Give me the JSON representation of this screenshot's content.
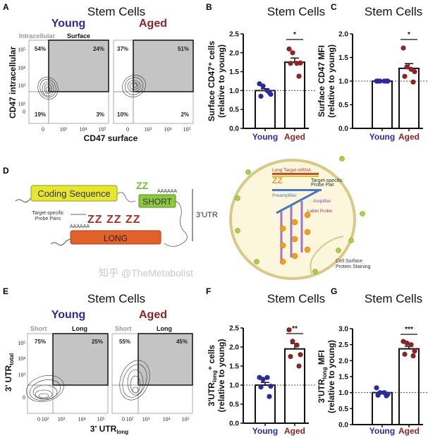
{
  "colors": {
    "young": "#2b2b9c",
    "aged": "#8b2424",
    "gate_fill": "#c4c4c4",
    "intracellular_label": "#9a9a9a"
  },
  "panel_a": {
    "label": "A",
    "title": "Stem Cells",
    "young": "Young",
    "aged": "Aged",
    "gate_left": "Intracellular",
    "gate_right": "Surface",
    "ylabel": "CD47 intracellular",
    "xlabel": "CD47 surface",
    "yticks": [
      "10⁵",
      "10⁴",
      "10³",
      "10²",
      "0"
    ],
    "xticks": [
      "0",
      "10³",
      "10⁴",
      "10⁵"
    ],
    "young_quadrants": {
      "ul": "54%",
      "ur": "24%",
      "ll": "19%",
      "lr": "3%"
    },
    "aged_quadrants": {
      "ul": "37%",
      "ur": "51%",
      "ll": "10%",
      "lr": "2%"
    }
  },
  "panel_d": {
    "label": "D",
    "coding": "Coding Sequence",
    "short": "SHORT",
    "long": "LONG",
    "probe_pairs": "Target-specific Probe Pairs",
    "utr": "3'UTR",
    "polya": "AAAAAA",
    "long_target": "Long Target mRNA",
    "target_probe_pair": "Target-specific Probe Pair",
    "preamplifier": "Preamplifier",
    "amplifier": "Amplifier",
    "label_probe": "Label Probe",
    "surface_staining": "Cell Surface Protein Staining"
  },
  "panel_e": {
    "label": "E",
    "title": "Stem Cells",
    "young": "Young",
    "aged": "Aged",
    "gate_left": "Short",
    "gate_right": "Long",
    "ylabel": "3' UTR",
    "ylabel_sub": "total",
    "xlabel": "3' UTR",
    "xlabel_sub": "long",
    "yticks": [
      "10⁵",
      "10⁴",
      "10³",
      "0"
    ],
    "xticks": [
      "0",
      "10²",
      "10³",
      "10⁴",
      "10⁵"
    ],
    "young_gates": {
      "left": "75%",
      "right": "25%"
    },
    "aged_gates": {
      "left": "55%",
      "right": "45%"
    }
  },
  "watermark": "知乎 @TheMetabolist",
  "chart_data": [
    {
      "id": "B",
      "type": "bar",
      "label": "B",
      "title": "Stem Cells",
      "ylabel": "Surface CD47⁺ cells",
      "ylabel2": "(relative to young)",
      "categories": [
        "Young",
        "Aged"
      ],
      "ylim": [
        0,
        2.5
      ],
      "yticks": [
        "0.0",
        "0.5",
        "1.0",
        "1.5",
        "2.0",
        "2.5"
      ],
      "ytick_values": [
        0,
        0.5,
        1.0,
        1.5,
        2.0,
        2.5
      ],
      "reference_line": 1.0,
      "significance": "*",
      "means": [
        1.0,
        1.75
      ],
      "sem": [
        0.05,
        0.11
      ],
      "points": [
        [
          1.18,
          1.12,
          1.0,
          0.9,
          0.85,
          0.95
        ],
        [
          2.1,
          2.0,
          1.72,
          1.73,
          1.72,
          1.38
        ]
      ]
    },
    {
      "id": "C",
      "type": "bar",
      "label": "C",
      "title": "Stem Cells",
      "ylabel": "Surface CD47 MFI",
      "ylabel2": "(relative to young)",
      "categories": [
        "Young",
        "Aged"
      ],
      "ylim": [
        0,
        2.0
      ],
      "yticks": [
        "0.0",
        "0.5",
        "1.0",
        "1.5",
        "2.0"
      ],
      "ytick_values": [
        0,
        0.5,
        1.0,
        1.5,
        2.0
      ],
      "reference_line": 1.0,
      "significance": "*",
      "means": [
        1.0,
        1.27
      ],
      "sem": [
        0.01,
        0.1
      ],
      "points": [
        [
          1.0,
          1.0,
          1.0,
          1.0,
          1.0,
          1.0
        ],
        [
          1.7,
          1.3,
          1.25,
          1.2,
          1.1,
          0.98
        ]
      ]
    },
    {
      "id": "F",
      "type": "bar",
      "label": "F",
      "title": "Stem Cells",
      "ylabel": "3'UTR",
      "ylabel_sub": "long",
      "ylabel_tail": "⁺ cells",
      "ylabel2": "(relative to young)",
      "categories": [
        "Young",
        "Aged"
      ],
      "ylim": [
        0,
        2.5
      ],
      "yticks": [
        "0.0",
        "0.5",
        "1.0",
        "1.5",
        "2.0",
        "2.5"
      ],
      "ytick_values": [
        0,
        0.5,
        1.0,
        1.5,
        2.0,
        2.5
      ],
      "reference_line": 1.0,
      "significance": "**",
      "means": [
        1.0,
        1.95
      ],
      "sem": [
        0.07,
        0.14
      ],
      "points": [
        [
          1.2,
          1.15,
          1.2,
          0.97,
          0.95,
          0.7
        ],
        [
          2.45,
          2.15,
          2.05,
          1.8,
          1.75,
          1.5
        ]
      ]
    },
    {
      "id": "G",
      "type": "bar",
      "label": "G",
      "title": "Stem Cells",
      "ylabel": "3'UTR",
      "ylabel_sub": "long",
      "ylabel_tail": " MFI",
      "ylabel2": "(relative to young)",
      "categories": [
        "Young",
        "Aged"
      ],
      "ylim": [
        0,
        3.0
      ],
      "yticks": [
        "0.0",
        "0.5",
        "1.0",
        "1.5",
        "2.0",
        "2.5",
        "3.0"
      ],
      "ytick_values": [
        0,
        0.5,
        1.0,
        1.5,
        2.0,
        2.5,
        3.0
      ],
      "reference_line": 1.0,
      "significance": "***",
      "means": [
        1.0,
        2.37
      ],
      "sem": [
        0.04,
        0.08
      ],
      "points": [
        [
          1.15,
          1.0,
          1.0,
          0.95,
          0.92,
          0.9
        ],
        [
          2.6,
          2.55,
          2.5,
          2.3,
          2.2,
          2.15
        ]
      ]
    }
  ]
}
